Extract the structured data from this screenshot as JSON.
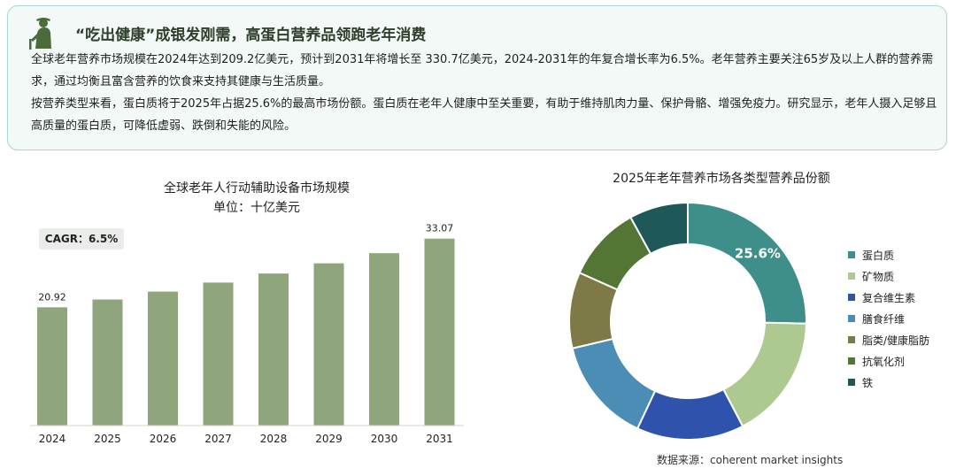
{
  "headline": "“吃出健康”成银发刚需，高蛋白营养品领跑老年消费",
  "paragraph1": "全球老年营养市场规模在2024年达到209.2亿美元，预计到2031年将增长至 330.7亿美元，2024-2031年的年复合增长率为6.5%。老年营养主要关注65岁及以上人群的营养需求，通过均衡且富含营养的饮食来支持其健康与生活质量。",
  "paragraph2": "按营养类型来看，蛋白质将于2025年占据25.6%的最高市场份额。蛋白质在老年人健康中至关重要，有助于维持肌肉力量、保护骨骼、增强免疫力。研究显示，老年人摄入足够且高质量的蛋白质，可降低虚弱、跌倒和失能的风险。",
  "source": "数据来源：coherent market insights",
  "icon": "elder-person-icon",
  "colors": {
    "bar": "#8fa67c",
    "accent": "#3e8f8a",
    "headline": "#2e3f2c"
  },
  "chart_data": [
    {
      "type": "bar",
      "title": "全球老年人行动辅助设备市场规模",
      "subtitle": "单位：十亿美元",
      "annotation": "CAGR：6.5%",
      "categories": [
        "2024",
        "2025",
        "2026",
        "2027",
        "2028",
        "2029",
        "2030",
        "2031"
      ],
      "values": [
        20.92,
        22.3,
        23.7,
        25.3,
        26.9,
        28.7,
        30.5,
        33.07
      ],
      "data_labels": [
        "20.92",
        "",
        "",
        "",
        "",
        "",
        "",
        "33.07"
      ],
      "ylim": [
        0,
        36
      ],
      "grid": false,
      "color": "#8fa67c"
    },
    {
      "type": "pie",
      "title": "2025年老年营养市场各类型营养品份额",
      "legend_position": "right",
      "slices": [
        {
          "label": "蛋白质",
          "value": 25.6,
          "color": "#3e8f8a",
          "display": "25.6%"
        },
        {
          "label": "矿物质",
          "value": 17.2,
          "color": "#adc98f",
          "display": ""
        },
        {
          "label": "复合维生素",
          "value": 14.8,
          "color": "#2f52ad",
          "display": ""
        },
        {
          "label": "膳食纤维",
          "value": 14.5,
          "color": "#4b8db5",
          "display": ""
        },
        {
          "label": "脂类/健康脂肪",
          "value": 10.5,
          "color": "#7d7a48",
          "display": ""
        },
        {
          "label": "抗氧化剂",
          "value": 10.4,
          "color": "#547634",
          "display": ""
        },
        {
          "label": "铁",
          "value": 8.1,
          "color": "#1f5859",
          "display": ""
        }
      ]
    }
  ]
}
